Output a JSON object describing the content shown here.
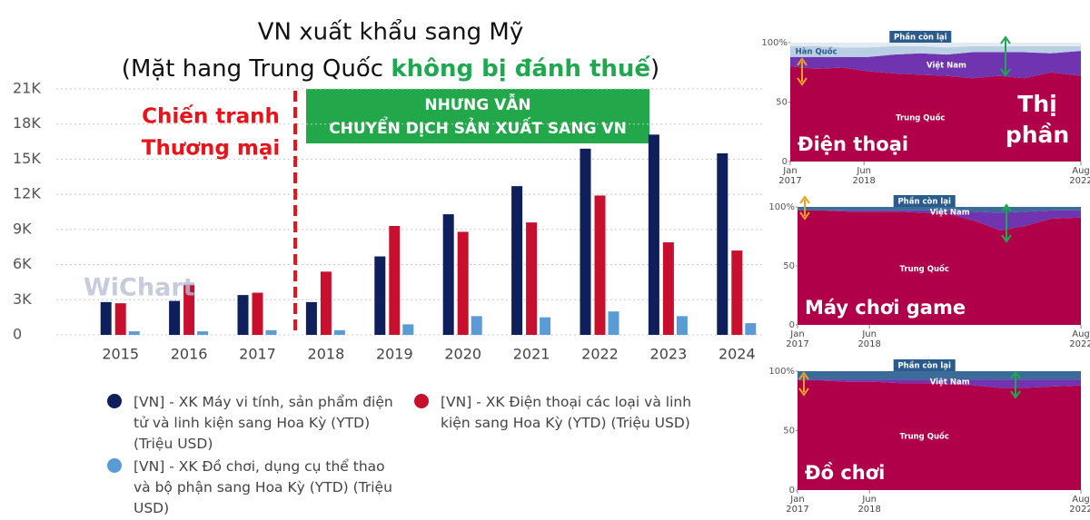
{
  "chart_data": [
    {
      "type": "bar",
      "title": "VN xuất khẩu sang Mỹ",
      "subtitle": [
        "(Mặt hang Trung Quốc ",
        "không bị đánh thuế",
        ")"
      ],
      "annotation_left": [
        "Chiến tranh",
        "Thương mại"
      ],
      "annotation_box": [
        "NHƯNG VẪN",
        "CHUYỂN DỊCH SẢN XUẤT SANG VN"
      ],
      "watermark": "WiChart",
      "categories": [
        "2015",
        "2016",
        "2017",
        "2018",
        "2019",
        "2020",
        "2021",
        "2022",
        "2023",
        "2024"
      ],
      "series": [
        {
          "name": "[VN] - XK Máy vi tính, sản phẩm điện tử và linh kiện sang Hoa Kỳ (YTD) (Triệu USD)",
          "color": "#0f1f5c",
          "values": [
            2800,
            2900,
            3400,
            2800,
            6700,
            10300,
            12700,
            15900,
            17100,
            15500
          ]
        },
        {
          "name": "[VN] - XK Điện thoại các loại và linh kiện sang Hoa Kỳ (YTD) (Triệu USD)",
          "color": "#c8102e",
          "values": [
            2700,
            4300,
            3600,
            5400,
            9300,
            8800,
            9600,
            11900,
            7900,
            7200
          ]
        },
        {
          "name": "[VN] - XK Đồ chơi, dụng cụ thể thao và bộ phận sang Hoa Kỳ (YTD) (Triệu USD)",
          "color": "#5b9bd5",
          "values": [
            300,
            300,
            400,
            400,
            900,
            1600,
            1500,
            2000,
            1600,
            1000
          ]
        }
      ],
      "ylim": [
        0,
        21000
      ],
      "yticks": [
        0,
        {
          "value": 3000,
          "label": "3K"
        },
        {
          "value": 6000,
          "label": "6K"
        },
        {
          "value": 9000,
          "label": "9K"
        },
        {
          "value": 12000,
          "label": "12K"
        },
        {
          "value": 15000,
          "label": "15K"
        },
        {
          "value": 18000,
          "label": "18K"
        },
        {
          "value": 21000,
          "label": "21K"
        }
      ],
      "grid": true
    },
    {
      "type": "area",
      "stacked": true,
      "panel_label": "Điện thoại",
      "annotation": [
        "Thị",
        "phần"
      ],
      "x": [
        "2017-01",
        "2017-07",
        "2018-01",
        "2018-07",
        "2019-01",
        "2019-07",
        "2020-01",
        "2020-07",
        "2021-01",
        "2021-07",
        "2022-01",
        "2022-08"
      ],
      "series": [
        {
          "name": "Trung Quốc",
          "color": "#b0004a",
          "values": [
            80,
            78,
            79,
            76,
            74,
            73,
            72,
            70,
            72,
            70,
            75,
            72
          ]
        },
        {
          "name": "Việt Nam",
          "color": "#7034b0",
          "values": [
            8,
            10,
            9,
            12,
            16,
            18,
            18,
            22,
            20,
            22,
            16,
            21
          ]
        },
        {
          "name": "Hàn Quốc",
          "color": "#b9cfe3",
          "values": [
            9,
            9,
            8,
            8,
            7,
            6,
            6,
            5,
            5,
            5,
            6,
            4
          ]
        },
        {
          "name": "Phần còn lại",
          "color": "#e4eaf1",
          "values": [
            3,
            3,
            4,
            4,
            3,
            3,
            4,
            3,
            3,
            3,
            3,
            3
          ]
        }
      ],
      "xlim": [
        "2017-01",
        "2022-08"
      ],
      "xticks": [
        {
          "value": "2017-01",
          "label": "Jan 2017"
        },
        {
          "value": "2018-06",
          "label": "Jun 2018"
        },
        {
          "value": "2022-08",
          "label": "Aug 2022"
        }
      ],
      "ylim": [
        0,
        100
      ],
      "yticks": [
        0,
        50,
        {
          "value": 100,
          "label": "100%"
        }
      ]
    },
    {
      "type": "area",
      "stacked": true,
      "panel_label": "Máy chơi game",
      "x": [
        "2017-01",
        "2017-07",
        "2018-01",
        "2018-07",
        "2019-01",
        "2019-07",
        "2020-01",
        "2020-07",
        "2021-01",
        "2021-07",
        "2022-01",
        "2022-08"
      ],
      "series": [
        {
          "name": "Trung Quốc",
          "color": "#b0004a",
          "values": [
            97,
            97,
            96,
            96,
            96,
            95,
            94,
            88,
            80,
            84,
            90,
            91
          ]
        },
        {
          "name": "Việt Nam",
          "color": "#7034b0",
          "values": [
            0,
            0,
            1,
            1,
            1,
            2,
            3,
            8,
            15,
            12,
            7,
            6
          ]
        },
        {
          "name": "Phần còn lại",
          "color": "#3a6b99",
          "values": [
            3,
            3,
            3,
            3,
            3,
            3,
            3,
            4,
            5,
            4,
            3,
            3
          ]
        }
      ],
      "xlim": [
        "2017-01",
        "2022-08"
      ],
      "xticks": [
        {
          "value": "2017-01",
          "label": "Jan 2017"
        },
        {
          "value": "2018-06",
          "label": "Jun 2018"
        },
        {
          "value": "2022-08",
          "label": "Aug 2022"
        }
      ],
      "ylim": [
        0,
        100
      ],
      "yticks": [
        0,
        50,
        {
          "value": 100,
          "label": "100%"
        }
      ]
    },
    {
      "type": "area",
      "stacked": true,
      "panel_label": "Đồ chơi",
      "x": [
        "2017-01",
        "2017-07",
        "2018-01",
        "2018-07",
        "2019-01",
        "2019-07",
        "2020-01",
        "2020-07",
        "2021-01",
        "2021-07",
        "2022-01",
        "2022-08"
      ],
      "series": [
        {
          "name": "Trung Quốc",
          "color": "#b0004a",
          "values": [
            92,
            92,
            91,
            91,
            90,
            90,
            89,
            88,
            86,
            86,
            87,
            88
          ]
        },
        {
          "name": "Việt Nam",
          "color": "#7034b0",
          "values": [
            1,
            1,
            2,
            2,
            3,
            3,
            4,
            5,
            7,
            7,
            6,
            5
          ]
        },
        {
          "name": "Phần còn lại",
          "color": "#3a6b99",
          "values": [
            7,
            7,
            7,
            7,
            7,
            7,
            7,
            7,
            7,
            7,
            7,
            7
          ]
        }
      ],
      "xlim": [
        "2017-01",
        "2022-08"
      ],
      "xticks": [
        {
          "value": "2017-01",
          "label": "Jan 2017"
        },
        {
          "value": "2018-06",
          "label": "Jun 2018"
        },
        {
          "value": "2022-08",
          "label": "Aug 2022"
        }
      ],
      "ylim": [
        0,
        100
      ],
      "yticks": [
        0,
        50,
        {
          "value": 100,
          "label": "100%"
        }
      ]
    }
  ]
}
